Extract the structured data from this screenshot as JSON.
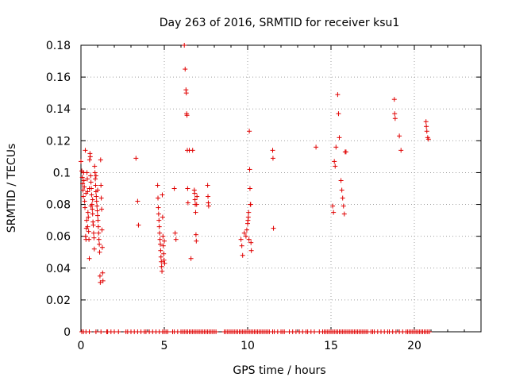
{
  "chart_data": {
    "type": "scatter",
    "title": "Day 263 of 2016, SRMTID for receiver ksu1",
    "xlabel": "GPS time / hours",
    "ylabel": "SRMTID / TECUs",
    "xlim": [
      0,
      24
    ],
    "ylim": [
      0,
      0.18
    ],
    "xticks": [
      0,
      5,
      10,
      15,
      20
    ],
    "xtick_labels": [
      "0",
      "5",
      "10",
      "15",
      "20"
    ],
    "yticks": [
      0,
      0.02,
      0.04,
      0.06,
      0.08,
      0.1,
      0.12,
      0.14,
      0.16,
      0.18
    ],
    "ytick_labels": [
      "0",
      "0.02",
      "0.04",
      "0.06",
      "0.08",
      "0.1",
      "0.12",
      "0.14",
      "0.16",
      "0.18"
    ],
    "grid": true,
    "marker": "+",
    "color": "#e00000",
    "series": [
      {
        "name": "SRMTID",
        "points": [
          [
            0.0,
            0.107
          ],
          [
            0.05,
            0.101
          ],
          [
            0.08,
            0.097
          ],
          [
            0.1,
            0.093
          ],
          [
            0.12,
            0.089
          ],
          [
            0.14,
            0.085
          ],
          [
            0.16,
            0.1
          ],
          [
            0.18,
            0.095
          ],
          [
            0.2,
            0.091
          ],
          [
            0.22,
            0.082
          ],
          [
            0.24,
            0.078
          ],
          [
            0.26,
            0.114
          ],
          [
            0.28,
            0.06
          ],
          [
            0.3,
            0.058
          ],
          [
            0.32,
            0.065
          ],
          [
            0.34,
            0.07
          ],
          [
            0.36,
            0.1
          ],
          [
            0.38,
            0.096
          ],
          [
            0.4,
            0.088
          ],
          [
            0.42,
            0.075
          ],
          [
            0.44,
            0.072
          ],
          [
            0.46,
            0.063
          ],
          [
            0.48,
            0.058
          ],
          [
            0.5,
            0.046
          ],
          [
            0.52,
            0.108
          ],
          [
            0.54,
            0.112
          ],
          [
            0.56,
            0.11
          ],
          [
            0.58,
            0.098
          ],
          [
            0.6,
            0.094
          ],
          [
            0.62,
            0.09
          ],
          [
            0.64,
            0.086
          ],
          [
            0.66,
            0.08
          ],
          [
            0.68,
            0.077
          ],
          [
            0.7,
            0.074
          ],
          [
            0.72,
            0.069
          ],
          [
            0.74,
            0.067
          ],
          [
            0.76,
            0.062
          ],
          [
            0.78,
            0.059
          ],
          [
            0.8,
            0.052
          ],
          [
            0.82,
            0.104
          ],
          [
            0.84,
            0.1
          ],
          [
            0.86,
            0.096
          ],
          [
            0.88,
            0.092
          ],
          [
            0.9,
            0.088
          ],
          [
            0.92,
            0.085
          ],
          [
            0.94,
            0.082
          ],
          [
            0.96,
            0.079
          ],
          [
            0.98,
            0.076
          ],
          [
            1.0,
            0.073
          ],
          [
            1.02,
            0.07
          ],
          [
            1.04,
            0.066
          ],
          [
            1.06,
            0.062
          ],
          [
            1.08,
            0.058
          ],
          [
            1.1,
            0.055
          ],
          [
            1.12,
            0.05
          ],
          [
            1.14,
            0.035
          ],
          [
            1.16,
            0.031
          ],
          [
            1.18,
            0.108
          ],
          [
            1.2,
            0.092
          ],
          [
            1.22,
            0.084
          ],
          [
            1.24,
            0.077
          ],
          [
            1.26,
            0.064
          ],
          [
            1.28,
            0.053
          ],
          [
            1.3,
            0.037
          ],
          [
            1.32,
            0.032
          ],
          [
            0.9,
            0.098
          ],
          [
            0.7,
            0.083
          ],
          [
            0.5,
            0.09
          ],
          [
            0.3,
            0.087
          ],
          [
            1.0,
            0.089
          ],
          [
            0.6,
            0.079
          ],
          [
            0.4,
            0.066
          ],
          [
            3.3,
            0.109
          ],
          [
            3.4,
            0.082
          ],
          [
            3.45,
            0.067
          ],
          [
            4.6,
            0.092
          ],
          [
            4.62,
            0.084
          ],
          [
            4.64,
            0.078
          ],
          [
            4.66,
            0.074
          ],
          [
            4.68,
            0.07
          ],
          [
            4.7,
            0.066
          ],
          [
            4.72,
            0.062
          ],
          [
            4.74,
            0.058
          ],
          [
            4.76,
            0.055
          ],
          [
            4.78,
            0.051
          ],
          [
            4.8,
            0.047
          ],
          [
            4.82,
            0.044
          ],
          [
            4.84,
            0.041
          ],
          [
            4.86,
            0.038
          ],
          [
            4.88,
            0.086
          ],
          [
            4.9,
            0.072
          ],
          [
            4.92,
            0.06
          ],
          [
            4.94,
            0.054
          ],
          [
            4.96,
            0.049
          ],
          [
            4.98,
            0.045
          ],
          [
            5.0,
            0.057
          ],
          [
            5.02,
            0.043
          ],
          [
            5.6,
            0.09
          ],
          [
            5.65,
            0.062
          ],
          [
            5.7,
            0.058
          ],
          [
            6.2,
            0.18
          ],
          [
            6.25,
            0.165
          ],
          [
            6.3,
            0.152
          ],
          [
            6.32,
            0.15
          ],
          [
            6.34,
            0.137
          ],
          [
            6.36,
            0.136
          ],
          [
            6.38,
            0.114
          ],
          [
            6.4,
            0.09
          ],
          [
            6.42,
            0.081
          ],
          [
            6.5,
            0.114
          ],
          [
            6.6,
            0.046
          ],
          [
            6.7,
            0.114
          ],
          [
            6.8,
            0.089
          ],
          [
            6.82,
            0.087
          ],
          [
            6.84,
            0.083
          ],
          [
            6.86,
            0.08
          ],
          [
            6.88,
            0.075
          ],
          [
            6.9,
            0.061
          ],
          [
            6.92,
            0.057
          ],
          [
            6.94,
            0.08
          ],
          [
            6.96,
            0.085
          ],
          [
            7.6,
            0.092
          ],
          [
            7.62,
            0.085
          ],
          [
            7.64,
            0.081
          ],
          [
            7.66,
            0.079
          ],
          [
            9.6,
            0.058
          ],
          [
            9.65,
            0.054
          ],
          [
            9.7,
            0.048
          ],
          [
            9.8,
            0.062
          ],
          [
            9.9,
            0.06
          ],
          [
            9.95,
            0.064
          ],
          [
            10.0,
            0.068
          ],
          [
            10.02,
            0.07
          ],
          [
            10.04,
            0.072
          ],
          [
            10.06,
            0.075
          ],
          [
            10.08,
            0.058
          ],
          [
            10.1,
            0.126
          ],
          [
            10.12,
            0.102
          ],
          [
            10.14,
            0.09
          ],
          [
            10.16,
            0.08
          ],
          [
            10.18,
            0.08
          ],
          [
            10.2,
            0.056
          ],
          [
            10.22,
            0.051
          ],
          [
            11.5,
            0.114
          ],
          [
            11.52,
            0.109
          ],
          [
            11.55,
            0.065
          ],
          [
            14.1,
            0.116
          ],
          [
            15.1,
            0.079
          ],
          [
            15.15,
            0.075
          ],
          [
            15.2,
            0.107
          ],
          [
            15.25,
            0.104
          ],
          [
            15.3,
            0.116
          ],
          [
            15.4,
            0.149
          ],
          [
            15.45,
            0.137
          ],
          [
            15.5,
            0.122
          ],
          [
            15.6,
            0.095
          ],
          [
            15.65,
            0.089
          ],
          [
            15.7,
            0.084
          ],
          [
            15.75,
            0.079
          ],
          [
            15.8,
            0.074
          ],
          [
            15.85,
            0.113
          ],
          [
            15.9,
            0.113
          ],
          [
            18.8,
            0.146
          ],
          [
            18.82,
            0.137
          ],
          [
            18.85,
            0.134
          ],
          [
            19.1,
            0.123
          ],
          [
            19.2,
            0.114
          ],
          [
            20.7,
            0.132
          ],
          [
            20.72,
            0.129
          ],
          [
            20.75,
            0.126
          ],
          [
            20.8,
            0.122
          ],
          [
            20.85,
            0.121
          ]
        ]
      }
    ],
    "zero_x": [
      0.05,
      0.15,
      0.3,
      0.5,
      0.9,
      1.2,
      1.55,
      1.6,
      1.8,
      2.0,
      2.25,
      2.7,
      2.8,
      3.0,
      3.2,
      3.4,
      3.6,
      3.8,
      3.9,
      4.1,
      4.3,
      4.5,
      4.7,
      4.9,
      5.0,
      5.1,
      5.2,
      5.5,
      5.6,
      5.8,
      6.0,
      6.1,
      6.2,
      6.3,
      6.4,
      6.5,
      6.6,
      6.7,
      6.8,
      6.9,
      7.0,
      7.1,
      7.2,
      7.3,
      7.4,
      7.5,
      7.6,
      7.7,
      7.8,
      7.9,
      8.0,
      8.1,
      8.6,
      8.7,
      8.8,
      8.9,
      9.0,
      9.1,
      9.2,
      9.3,
      9.4,
      9.5,
      9.6,
      9.7,
      9.8,
      9.9,
      10.0,
      10.1,
      10.2,
      10.3,
      10.4,
      10.5,
      10.6,
      10.7,
      10.8,
      10.9,
      11.0,
      11.1,
      11.2,
      11.3,
      11.5,
      11.6,
      11.8,
      12.0,
      12.1,
      12.2,
      12.5,
      12.7,
      12.9,
      13.1,
      13.3,
      13.5,
      13.6,
      13.8,
      14.0,
      14.3,
      14.5,
      14.6,
      14.7,
      14.8,
      14.9,
      15.0,
      15.1,
      15.2,
      15.3,
      15.4,
      15.5,
      15.6,
      15.7,
      15.8,
      15.9,
      16.0,
      16.1,
      16.2,
      16.3,
      16.4,
      16.5,
      16.6,
      16.7,
      16.8,
      16.9,
      17.0,
      17.1,
      17.2,
      17.4,
      17.5,
      17.6,
      17.8,
      18.0,
      18.2,
      18.4,
      18.5,
      18.7,
      18.9,
      19.1,
      19.3,
      19.5,
      19.6,
      19.7,
      19.8,
      19.9,
      20.0,
      20.1,
      20.2,
      20.3,
      20.4,
      20.5,
      20.6,
      20.7,
      20.8,
      20.9
    ]
  }
}
